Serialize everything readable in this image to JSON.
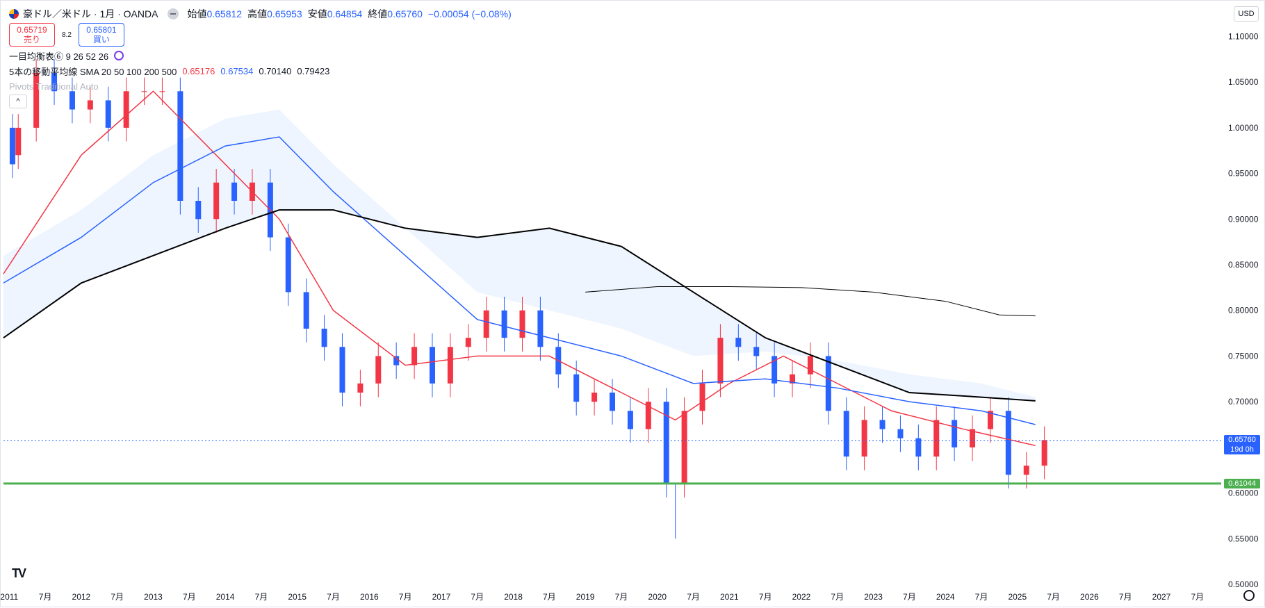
{
  "header": {
    "symbol_title": "豪ドル／米ドル · 1月 · OANDA",
    "open_label": "始値",
    "open_value": "0.65812",
    "high_label": "高値",
    "high_value": "0.65953",
    "low_label": "安値",
    "low_value": "0.64854",
    "close_label": "終値",
    "close_value": "0.65760",
    "change": "−0.00054 (−0.08%)"
  },
  "trade": {
    "sell_price": "0.65719",
    "sell_label": "売り",
    "spread": "8.2",
    "buy_price": "0.65801",
    "buy_label": "買い"
  },
  "indicators": {
    "ichimoku": "一目均衡表⑥ 9 26 52 26",
    "sma_label": "5本の移動平均線 SMA 20 50 100 200 500",
    "sma_values": [
      "0.65176",
      "0.67534",
      "0.70140",
      "0.79423"
    ],
    "pivots": "Pivots Traditional Auto"
  },
  "toolbar": {
    "currency": "USD",
    "collapse": "^"
  },
  "price_tags": {
    "current": "0.65760",
    "countdown": "19d 0h",
    "horizontal_line": "0.61044"
  },
  "colors": {
    "up": "#f23645",
    "down": "#2962ff",
    "sma20": "#f23645",
    "sma50": "#2962ff",
    "sma100": "#000000",
    "sma200": "#000000",
    "hline": "#4caf50"
  },
  "chart_data": {
    "type": "candlestick",
    "title": "豪ドル／米ドル · 1月 · OANDA",
    "ylim": [
      0.5,
      1.13
    ],
    "y_ticks": [
      0.5,
      0.55,
      0.6,
      0.65,
      0.7,
      0.75,
      0.8,
      0.85,
      0.9,
      0.95,
      1.0,
      1.05,
      1.1
    ],
    "x_ticks": [
      "2011",
      "7月",
      "2012",
      "7月",
      "2013",
      "7月",
      "2014",
      "7月",
      "2015",
      "7月",
      "2016",
      "7月",
      "2017",
      "7月",
      "2018",
      "7月",
      "2019",
      "7月",
      "2020",
      "7月",
      "2021",
      "7月",
      "2022",
      "7月",
      "2023",
      "7月",
      "2024",
      "7月",
      "2025",
      "7月",
      "2026",
      "7月",
      "2027",
      "7月"
    ],
    "x_range": [
      2010.92,
      2027.83
    ],
    "bars_est_quarterly": [
      [
        2010.92,
        1.0,
        0.96
      ],
      [
        2011.0,
        0.97,
        1.0
      ],
      [
        2011.25,
        1.0,
        1.06
      ],
      [
        2011.5,
        1.06,
        1.04
      ],
      [
        2011.75,
        1.04,
        1.02
      ],
      [
        2012.0,
        1.02,
        1.03
      ],
      [
        2012.25,
        1.03,
        1.0
      ],
      [
        2012.5,
        1.0,
        1.04
      ],
      [
        2012.75,
        1.04,
        1.04
      ],
      [
        2013.0,
        1.04,
        1.04
      ],
      [
        2013.25,
        1.04,
        0.92
      ],
      [
        2013.5,
        0.92,
        0.9
      ],
      [
        2013.75,
        0.9,
        0.94
      ],
      [
        2014.0,
        0.94,
        0.92
      ],
      [
        2014.25,
        0.92,
        0.94
      ],
      [
        2014.5,
        0.94,
        0.88
      ],
      [
        2014.75,
        0.88,
        0.82
      ],
      [
        2015.0,
        0.82,
        0.78
      ],
      [
        2015.25,
        0.78,
        0.76
      ],
      [
        2015.5,
        0.76,
        0.71
      ],
      [
        2015.75,
        0.71,
        0.72
      ],
      [
        2016.0,
        0.72,
        0.75
      ],
      [
        2016.25,
        0.75,
        0.74
      ],
      [
        2016.5,
        0.74,
        0.76
      ],
      [
        2016.75,
        0.76,
        0.72
      ],
      [
        2017.0,
        0.72,
        0.76
      ],
      [
        2017.25,
        0.76,
        0.77
      ],
      [
        2017.5,
        0.77,
        0.8
      ],
      [
        2017.75,
        0.8,
        0.77
      ],
      [
        2018.0,
        0.77,
        0.8
      ],
      [
        2018.25,
        0.8,
        0.76
      ],
      [
        2018.5,
        0.76,
        0.73
      ],
      [
        2018.75,
        0.73,
        0.7
      ],
      [
        2019.0,
        0.7,
        0.71
      ],
      [
        2019.25,
        0.71,
        0.69
      ],
      [
        2019.5,
        0.69,
        0.67
      ],
      [
        2019.75,
        0.67,
        0.7
      ],
      [
        2020.0,
        0.7,
        0.61
      ],
      [
        2020.25,
        0.61,
        0.69
      ],
      [
        2020.5,
        0.69,
        0.72
      ],
      [
        2020.75,
        0.72,
        0.77
      ],
      [
        2021.0,
        0.77,
        0.76
      ],
      [
        2021.25,
        0.76,
        0.75
      ],
      [
        2021.5,
        0.75,
        0.72
      ],
      [
        2021.75,
        0.72,
        0.73
      ],
      [
        2022.0,
        0.73,
        0.75
      ],
      [
        2022.25,
        0.75,
        0.69
      ],
      [
        2022.5,
        0.69,
        0.64
      ],
      [
        2022.75,
        0.64,
        0.68
      ],
      [
        2023.0,
        0.68,
        0.67
      ],
      [
        2023.25,
        0.67,
        0.66
      ],
      [
        2023.5,
        0.66,
        0.64
      ],
      [
        2023.75,
        0.64,
        0.68
      ],
      [
        2024.0,
        0.68,
        0.65
      ],
      [
        2024.25,
        0.65,
        0.67
      ],
      [
        2024.5,
        0.67,
        0.69
      ],
      [
        2024.75,
        0.69,
        0.62
      ],
      [
        2025.0,
        0.62,
        0.63
      ],
      [
        2025.25,
        0.63,
        0.658
      ]
    ],
    "series": [
      {
        "name": "SMA 20",
        "points": [
          [
            2010.92,
            0.84
          ],
          [
            2012.0,
            0.97
          ],
          [
            2013.0,
            1.04
          ],
          [
            2014.0,
            0.96
          ],
          [
            2014.75,
            0.9
          ],
          [
            2015.5,
            0.8
          ],
          [
            2016.5,
            0.74
          ],
          [
            2017.5,
            0.75
          ],
          [
            2018.5,
            0.75
          ],
          [
            2019.5,
            0.71
          ],
          [
            2020.25,
            0.68
          ],
          [
            2021.0,
            0.72
          ],
          [
            2021.75,
            0.75
          ],
          [
            2022.5,
            0.72
          ],
          [
            2023.25,
            0.69
          ],
          [
            2024.25,
            0.67
          ],
          [
            2025.25,
            0.652
          ]
        ]
      },
      {
        "name": "SMA 50",
        "points": [
          [
            2010.92,
            0.83
          ],
          [
            2012.0,
            0.88
          ],
          [
            2013.0,
            0.94
          ],
          [
            2014.0,
            0.98
          ],
          [
            2014.75,
            0.99
          ],
          [
            2015.5,
            0.93
          ],
          [
            2016.5,
            0.86
          ],
          [
            2017.5,
            0.79
          ],
          [
            2018.5,
            0.77
          ],
          [
            2019.5,
            0.75
          ],
          [
            2020.5,
            0.72
          ],
          [
            2021.5,
            0.725
          ],
          [
            2022.5,
            0.715
          ],
          [
            2023.5,
            0.7
          ],
          [
            2024.5,
            0.69
          ],
          [
            2025.25,
            0.675
          ]
        ]
      },
      {
        "name": "SMA 100",
        "points": [
          [
            2010.92,
            0.77
          ],
          [
            2012.0,
            0.83
          ],
          [
            2013.0,
            0.86
          ],
          [
            2014.0,
            0.89
          ],
          [
            2014.75,
            0.91
          ],
          [
            2015.5,
            0.91
          ],
          [
            2016.5,
            0.89
          ],
          [
            2017.5,
            0.88
          ],
          [
            2018.5,
            0.89
          ],
          [
            2019.5,
            0.87
          ],
          [
            2020.5,
            0.82
          ],
          [
            2021.5,
            0.77
          ],
          [
            2022.5,
            0.74
          ],
          [
            2023.5,
            0.71
          ],
          [
            2024.5,
            0.705
          ],
          [
            2025.25,
            0.701
          ]
        ]
      },
      {
        "name": "SMA 200",
        "points": [
          [
            2019.0,
            0.82
          ],
          [
            2020.0,
            0.826
          ],
          [
            2021.0,
            0.826
          ],
          [
            2022.0,
            0.825
          ],
          [
            2023.0,
            0.82
          ],
          [
            2024.0,
            0.81
          ],
          [
            2024.75,
            0.795
          ],
          [
            2025.25,
            0.794
          ]
        ]
      }
    ],
    "hline": 0.61044,
    "current_price": 0.6576,
    "min_low": 0.55
  }
}
